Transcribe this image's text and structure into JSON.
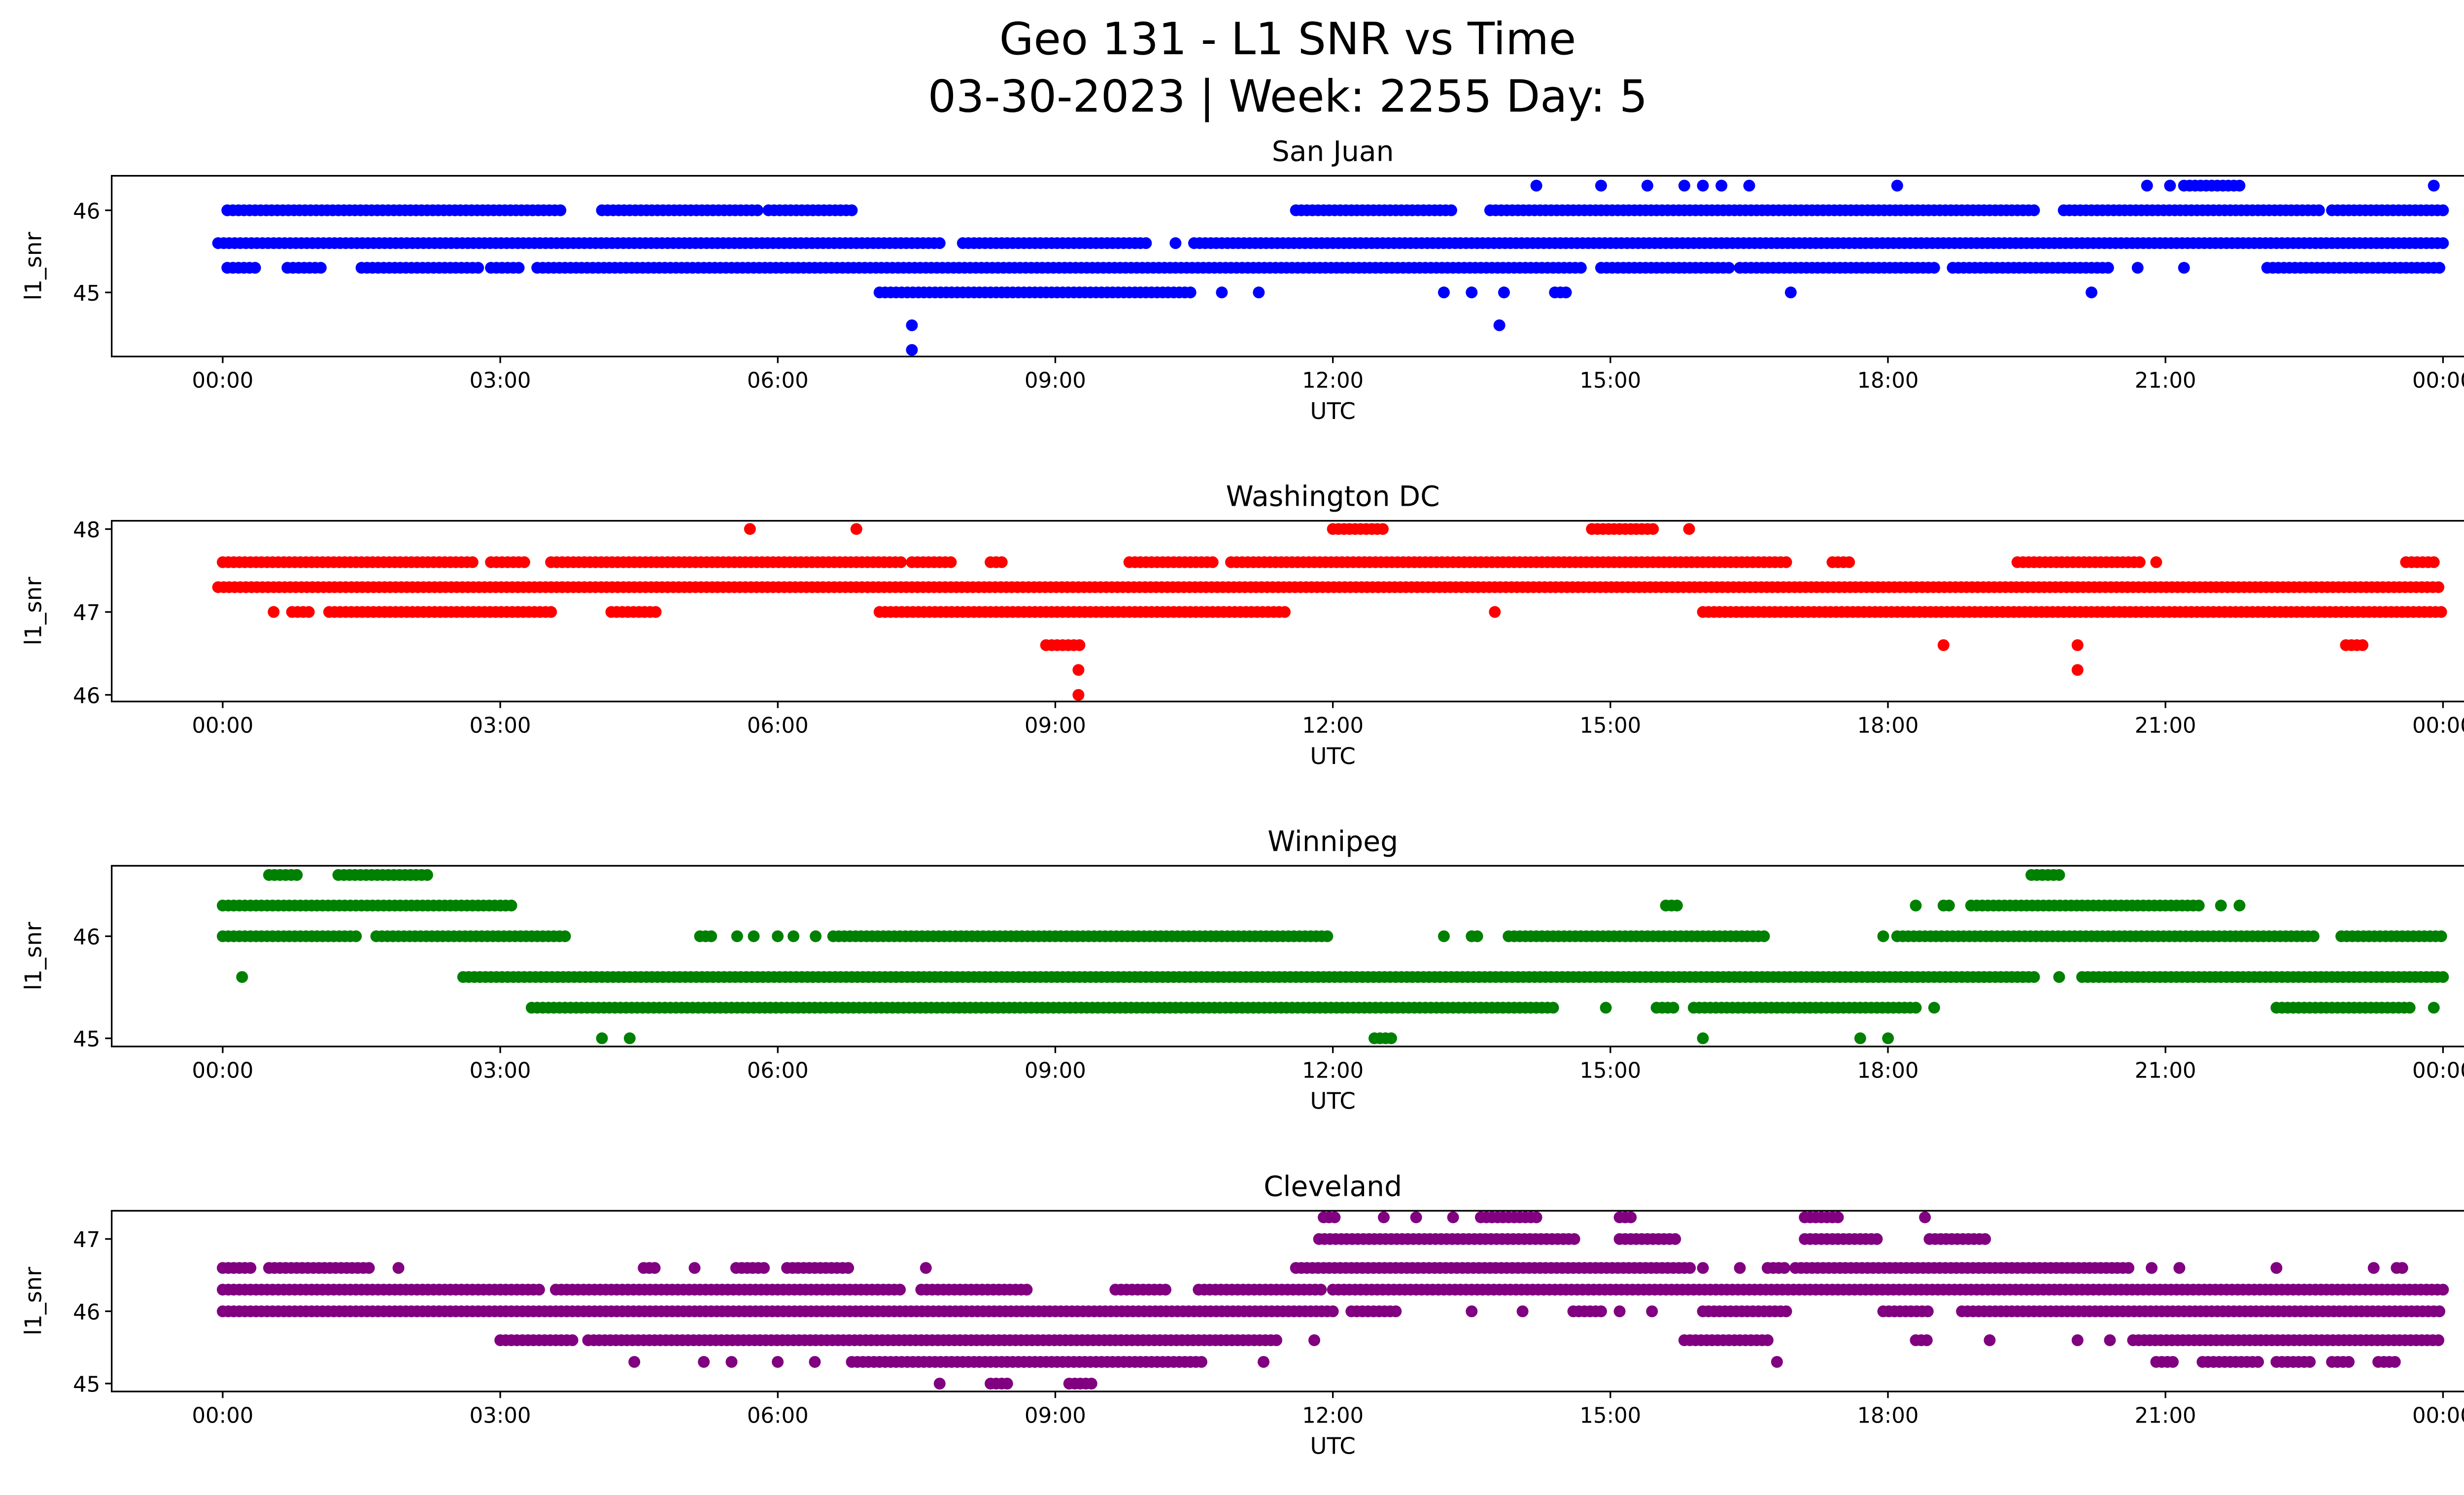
{
  "title_line1": "Geo 131 - L1 SNR vs Time",
  "title_line2": "03-30-2023 | Week: 2255 Day: 5",
  "chart_data": [
    {
      "type": "scatter",
      "title": "San Juan",
      "color": "#0000ff",
      "xlabel": "UTC",
      "ylabel": "l1_snr",
      "xlim_hours": [
        -1.2,
        25.2
      ],
      "xticks": [
        "00:00",
        "03:00",
        "06:00",
        "09:00",
        "12:00",
        "15:00",
        "18:00",
        "21:00",
        "00:00"
      ],
      "ylim": [
        44.22,
        46.42
      ],
      "yticks": [
        45,
        46
      ],
      "levels": [
        {
          "snr": 46.3,
          "segments": [
            [
              14.2,
              14.2
            ],
            [
              14.9,
              14.9
            ],
            [
              15.4,
              15.4
            ],
            [
              15.8,
              15.8
            ],
            [
              16.0,
              16.0
            ],
            [
              16.2,
              16.2
            ],
            [
              16.5,
              16.5
            ],
            [
              18.1,
              18.1
            ],
            [
              20.8,
              20.8
            ],
            [
              21.05,
              21.05
            ],
            [
              21.2,
              21.8
            ],
            [
              23.9,
              23.9
            ]
          ]
        },
        {
          "snr": 46.0,
          "segments": [
            [
              0.05,
              3.7
            ],
            [
              4.1,
              5.8
            ],
            [
              5.9,
              6.8
            ],
            [
              11.6,
              13.3
            ],
            [
              13.7,
              19.6
            ],
            [
              19.9,
              22.7
            ],
            [
              22.8,
              24
            ]
          ]
        },
        {
          "snr": 45.6,
          "segments": [
            [
              -0.05,
              7.8
            ],
            [
              8.0,
              10.0
            ],
            [
              10.3,
              10.3
            ],
            [
              10.5,
              24
            ]
          ]
        },
        {
          "snr": 45.3,
          "segments": [
            [
              0.05,
              0.4
            ],
            [
              0.7,
              1.1
            ],
            [
              1.5,
              2.8
            ],
            [
              2.9,
              3.2
            ],
            [
              3.4,
              14.7
            ],
            [
              14.9,
              16.3
            ],
            [
              16.4,
              18.5
            ],
            [
              18.7,
              20.4
            ],
            [
              20.7,
              20.7
            ],
            [
              21.2,
              21.2
            ],
            [
              22.1,
              24
            ]
          ]
        },
        {
          "snr": 45.0,
          "segments": [
            [
              7.1,
              10.5
            ],
            [
              10.8,
              10.8
            ],
            [
              11.2,
              11.2
            ],
            [
              13.2,
              13.2
            ],
            [
              13.5,
              13.5
            ],
            [
              13.85,
              13.85
            ],
            [
              14.4,
              14.55
            ],
            [
              16.95,
              16.95
            ],
            [
              20.2,
              20.2
            ]
          ]
        },
        {
          "snr": 44.6,
          "segments": [
            [
              7.45,
              7.45
            ],
            [
              13.8,
              13.8
            ]
          ]
        },
        {
          "snr": 44.3,
          "segments": [
            [
              7.45,
              7.45
            ]
          ]
        }
      ]
    },
    {
      "type": "scatter",
      "title": "Washington DC",
      "color": "#ff0000",
      "xlabel": "UTC",
      "ylabel": "l1_snr",
      "xlim_hours": [
        -1.2,
        25.2
      ],
      "xticks": [
        "00:00",
        "03:00",
        "06:00",
        "09:00",
        "12:00",
        "15:00",
        "18:00",
        "21:00",
        "00:00"
      ],
      "ylim": [
        45.92,
        48.1
      ],
      "yticks": [
        46,
        47,
        48
      ],
      "levels": [
        {
          "snr": 48.0,
          "segments": [
            [
              5.7,
              5.7
            ],
            [
              6.85,
              6.85
            ],
            [
              12.0,
              12.55
            ],
            [
              14.8,
              15.5
            ],
            [
              15.85,
              15.85
            ]
          ]
        },
        {
          "snr": 47.6,
          "segments": [
            [
              0,
              2.7
            ],
            [
              2.9,
              3.3
            ],
            [
              3.55,
              7.35
            ],
            [
              7.45,
              7.9
            ],
            [
              8.3,
              8.45
            ],
            [
              9.8,
              10.7
            ],
            [
              10.9,
              16.9
            ],
            [
              17.4,
              17.6
            ],
            [
              19.4,
              20.75
            ],
            [
              20.9,
              20.9
            ],
            [
              23.6,
              23.95
            ]
          ]
        },
        {
          "snr": 47.3,
          "segments": [
            [
              -0.05,
              24
            ]
          ]
        },
        {
          "snr": 47.0,
          "segments": [
            [
              0.55,
              0.55
            ],
            [
              0.75,
              0.95
            ],
            [
              1.15,
              3.6
            ],
            [
              4.2,
              4.7
            ],
            [
              7.1,
              11.5
            ],
            [
              13.75,
              13.75
            ],
            [
              16.0,
              24
            ]
          ]
        },
        {
          "snr": 46.6,
          "segments": [
            [
              8.9,
              9.3
            ],
            [
              18.6,
              18.6
            ],
            [
              20.05,
              20.05
            ],
            [
              22.95,
              23.15
            ]
          ]
        },
        {
          "snr": 46.3,
          "segments": [
            [
              9.25,
              9.25
            ],
            [
              20.05,
              20.05
            ]
          ]
        },
        {
          "snr": 46.0,
          "segments": [
            [
              9.25,
              9.25
            ]
          ]
        }
      ]
    },
    {
      "type": "scatter",
      "title": "Winnipeg",
      "color": "#008000",
      "xlabel": "UTC",
      "ylabel": "l1_snr",
      "xlim_hours": [
        -1.2,
        25.2
      ],
      "xticks": [
        "00:00",
        "03:00",
        "06:00",
        "09:00",
        "12:00",
        "15:00",
        "18:00",
        "21:00",
        "00:00"
      ],
      "ylim": [
        44.92,
        46.69
      ],
      "yticks": [
        45,
        46
      ],
      "levels": [
        {
          "snr": 46.6,
          "segments": [
            [
              0.5,
              0.83
            ],
            [
              1.25,
              2.23
            ],
            [
              19.55,
              19.9
            ]
          ]
        },
        {
          "snr": 46.3,
          "segments": [
            [
              0,
              3.15
            ],
            [
              15.6,
              15.75
            ],
            [
              18.3,
              18.3
            ],
            [
              18.6,
              18.7
            ],
            [
              18.9,
              21.4
            ],
            [
              21.6,
              21.6
            ],
            [
              21.8,
              21.8
            ]
          ]
        },
        {
          "snr": 46.0,
          "segments": [
            [
              0,
              1.46
            ],
            [
              1.66,
              3.74
            ],
            [
              5.16,
              5.3
            ],
            [
              5.56,
              5.56
            ],
            [
              5.74,
              5.74
            ],
            [
              6.0,
              6.0
            ],
            [
              6.17,
              6.17
            ],
            [
              6.41,
              6.41
            ],
            [
              6.6,
              11.95
            ],
            [
              13.2,
              13.2
            ],
            [
              13.5,
              13.6
            ],
            [
              13.9,
              16.7
            ],
            [
              17.95,
              17.95
            ],
            [
              18.1,
              22.6
            ],
            [
              22.9,
              24
            ]
          ]
        },
        {
          "snr": 45.6,
          "segments": [
            [
              0.21,
              0.21
            ],
            [
              2.6,
              19.6
            ],
            [
              19.85,
              19.85
            ],
            [
              20.1,
              24
            ]
          ]
        },
        {
          "snr": 45.3,
          "segments": [
            [
              3.34,
              14.4
            ],
            [
              14.95,
              14.95
            ],
            [
              15.5,
              15.7
            ],
            [
              15.9,
              18.3
            ],
            [
              18.5,
              18.5
            ],
            [
              22.2,
              23.65
            ],
            [
              23.9,
              23.9
            ]
          ]
        },
        {
          "snr": 45.0,
          "segments": [
            [
              4.1,
              4.1
            ],
            [
              4.4,
              4.4
            ],
            [
              12.45,
              12.65
            ],
            [
              16.0,
              16.0
            ],
            [
              17.7,
              17.7
            ],
            [
              18.0,
              18.0
            ]
          ]
        }
      ]
    },
    {
      "type": "scatter",
      "title": "Cleveland",
      "color": "#800080",
      "xlabel": "UTC",
      "ylabel": "l1_snr",
      "xlim_hours": [
        -1.2,
        25.2
      ],
      "xticks": [
        "00:00",
        "03:00",
        "06:00",
        "09:00",
        "12:00",
        "15:00",
        "18:00",
        "21:00",
        "00:00"
      ],
      "ylim": [
        44.89,
        47.39
      ],
      "yticks": [
        45,
        46,
        47
      ],
      "levels": [
        {
          "snr": 47.3,
          "segments": [
            [
              11.9,
              12.05
            ],
            [
              12.55,
              12.55
            ],
            [
              12.9,
              12.9
            ],
            [
              13.3,
              13.3
            ],
            [
              13.6,
              14.2
            ],
            [
              15.1,
              15.25
            ],
            [
              17.1,
              17.5
            ],
            [
              18.4,
              18.4
            ]
          ]
        },
        {
          "snr": 47.0,
          "segments": [
            [
              11.85,
              14.65
            ],
            [
              15.1,
              15.75
            ],
            [
              17.1,
              17.9
            ],
            [
              18.45,
              19.1
            ]
          ]
        },
        {
          "snr": 46.6,
          "segments": [
            [
              0,
              0.3
            ],
            [
              0.5,
              1.6
            ],
            [
              1.9,
              1.9
            ],
            [
              4.55,
              4.7
            ],
            [
              5.1,
              5.1
            ],
            [
              5.55,
              5.85
            ],
            [
              6.1,
              6.8
            ],
            [
              7.6,
              7.6
            ],
            [
              11.6,
              15.9
            ],
            [
              16.0,
              16.0
            ],
            [
              16.4,
              16.4
            ],
            [
              16.7,
              16.9
            ],
            [
              17.0,
              20.65
            ],
            [
              20.85,
              20.85
            ],
            [
              21.15,
              21.15
            ],
            [
              22.2,
              22.2
            ],
            [
              23.25,
              23.25
            ],
            [
              23.5,
              23.6
            ]
          ]
        },
        {
          "snr": 46.3,
          "segments": [
            [
              0,
              3.45
            ],
            [
              3.6,
              7.35
            ],
            [
              7.55,
              8.7
            ],
            [
              9.65,
              10.2
            ],
            [
              10.55,
              11.9
            ],
            [
              12.0,
              24
            ]
          ]
        },
        {
          "snr": 46.0,
          "segments": [
            [
              0,
              12.0
            ],
            [
              12.2,
              12.7
            ],
            [
              13.5,
              13.5
            ],
            [
              14.05,
              14.05
            ],
            [
              14.6,
              14.9
            ],
            [
              15.1,
              15.1
            ],
            [
              15.45,
              15.45
            ],
            [
              16.0,
              16.95
            ],
            [
              17.95,
              18.45
            ],
            [
              18.8,
              24
            ]
          ]
        },
        {
          "snr": 45.6,
          "segments": [
            [
              3.0,
              3.8
            ],
            [
              3.95,
              11.4
            ],
            [
              11.8,
              11.8
            ],
            [
              15.8,
              16.75
            ],
            [
              18.3,
              18.45
            ],
            [
              19.1,
              19.1
            ],
            [
              20.05,
              20.05
            ],
            [
              20.4,
              20.4
            ],
            [
              20.65,
              24
            ]
          ]
        },
        {
          "snr": 45.3,
          "segments": [
            [
              4.45,
              4.45
            ],
            [
              5.2,
              5.2
            ],
            [
              5.5,
              5.5
            ],
            [
              6.0,
              6.0
            ],
            [
              6.4,
              6.4
            ],
            [
              6.8,
              10.6
            ],
            [
              11.25,
              11.25
            ],
            [
              16.8,
              16.8
            ],
            [
              20.9,
              21.1
            ],
            [
              21.4,
              22.0
            ],
            [
              22.2,
              22.6
            ],
            [
              22.8,
              23.0
            ],
            [
              23.3,
              23.5
            ]
          ]
        },
        {
          "snr": 45.0,
          "segments": [
            [
              7.75,
              7.75
            ],
            [
              8.3,
              8.5
            ],
            [
              9.15,
              9.4
            ]
          ]
        }
      ]
    }
  ]
}
